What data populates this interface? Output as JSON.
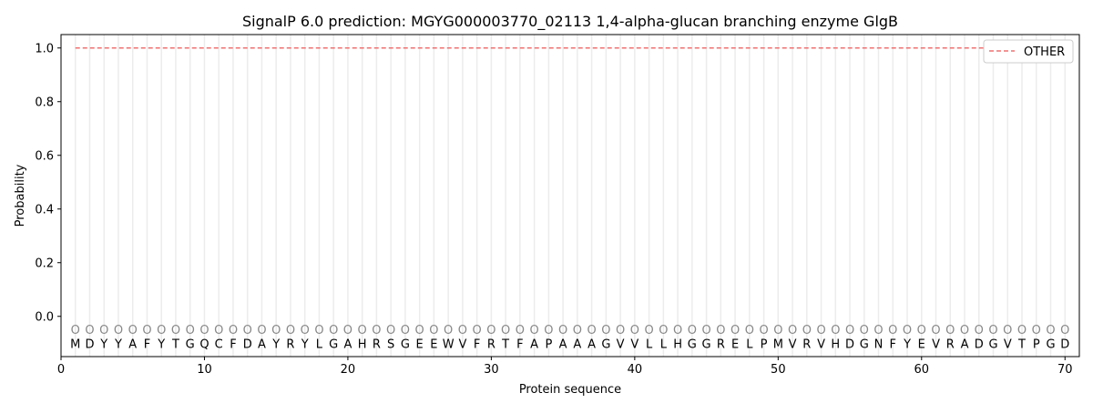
{
  "chart_data": {
    "type": "line",
    "title": "SignalP 6.0 prediction: MGYG000003770_02113 1,4-alpha-glucan branching enzyme GlgB",
    "xlabel": "Protein sequence",
    "ylabel": "Probability",
    "xlim": [
      0,
      71
    ],
    "ylim": [
      -0.15,
      1.05
    ],
    "xticks": [
      0,
      10,
      20,
      30,
      40,
      50,
      60,
      70
    ],
    "yticks": [
      0.0,
      0.2,
      0.4,
      0.6,
      0.8,
      1.0
    ],
    "ytick_labels": [
      "0.0",
      "0.2",
      "0.4",
      "0.6",
      "0.8",
      "1.0"
    ],
    "grid": "vertical lines at each residue",
    "legend_position": "top-right",
    "sequence": [
      "M",
      "D",
      "Y",
      "Y",
      "A",
      "F",
      "Y",
      "T",
      "G",
      "Q",
      "C",
      "F",
      "D",
      "A",
      "Y",
      "R",
      "Y",
      "L",
      "G",
      "A",
      "H",
      "R",
      "S",
      "G",
      "E",
      "E",
      "W",
      "V",
      "F",
      "R",
      "T",
      "F",
      "A",
      "P",
      "A",
      "A",
      "A",
      "G",
      "V",
      "V",
      "L",
      "L",
      "H",
      "G",
      "G",
      "R",
      "E",
      "L",
      "P",
      "M",
      "V",
      "R",
      "V",
      "H",
      "D",
      "G",
      "N",
      "F",
      "Y",
      "E",
      "V",
      "R",
      "A",
      "D",
      "G",
      "V",
      "T",
      "P",
      "G",
      "D"
    ],
    "predicted_label": "O",
    "series": [
      {
        "name": "OTHER",
        "color": "#f07070",
        "style": "dashed",
        "x_range": [
          1,
          70
        ],
        "value": 1.0
      }
    ]
  }
}
